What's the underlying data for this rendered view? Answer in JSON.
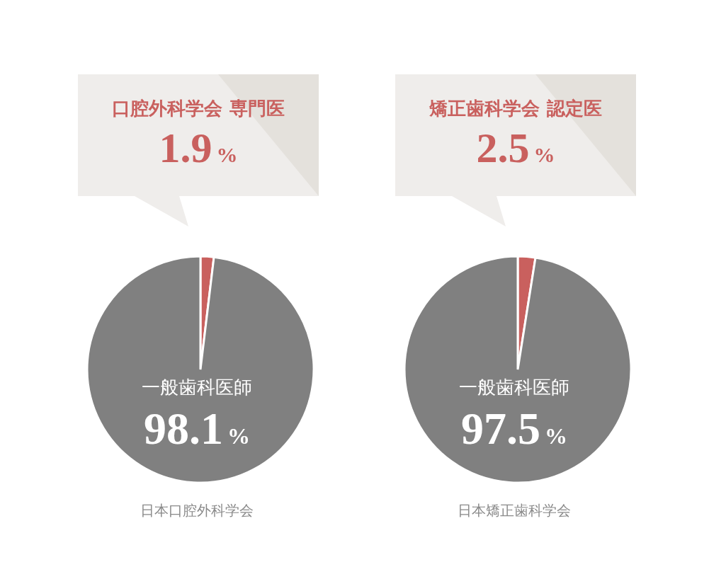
{
  "chart_data": [
    {
      "type": "pie",
      "title": "日本口腔外科学会",
      "categories": [
        "口腔外科学会 専門医",
        "一般歯科医師"
      ],
      "values": [
        1.9,
        98.1
      ],
      "colors": [
        "#c9605e",
        "#808080"
      ],
      "value_labels": [
        "1.9%",
        "98.1%"
      ]
    },
    {
      "type": "pie",
      "title": "日本矯正歯科学会",
      "categories": [
        "矯正歯科学会 認定医",
        "一般歯科医師"
      ],
      "values": [
        2.5,
        97.5
      ],
      "colors": [
        "#c9605e",
        "#808080"
      ],
      "value_labels": [
        "2.5%",
        "97.5%"
      ]
    }
  ]
}
